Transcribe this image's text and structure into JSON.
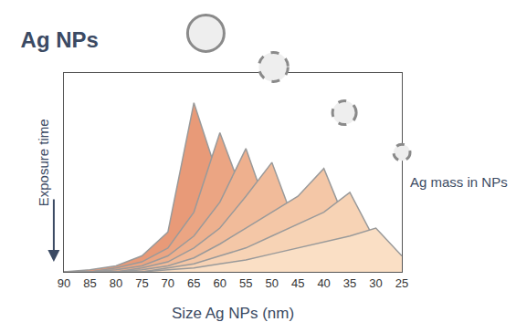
{
  "chart_data": {
    "type": "area",
    "title": "Ag NPs",
    "x_label": "Size Ag NPs (nm)",
    "annotations": [
      "Exposure time",
      "Ag mass in NPs"
    ],
    "x": [
      90,
      85,
      80,
      75,
      70,
      65,
      60,
      55,
      50,
      45,
      40,
      35,
      30,
      25
    ],
    "xlim": [
      90,
      25
    ],
    "xticks": [
      90,
      85,
      80,
      75,
      70,
      65,
      60,
      55,
      50,
      45,
      40,
      35,
      30,
      25
    ],
    "ylim": [
      0,
      100
    ],
    "yticks": [],
    "tick_labels": "x",
    "grid": false,
    "stacked": false,
    "series": [
      {
        "color": "#e89a78",
        "values": [
          0,
          1,
          3,
          8,
          20,
          85,
          45,
          18,
          6,
          2,
          1,
          0,
          0,
          0
        ]
      },
      {
        "color": "#eba583",
        "values": [
          0,
          0,
          2,
          5,
          12,
          30,
          70,
          35,
          12,
          4,
          1,
          0,
          0,
          0
        ]
      },
      {
        "color": "#eeb08e",
        "values": [
          0,
          0,
          1,
          3,
          8,
          18,
          35,
          62,
          25,
          8,
          2,
          0,
          0,
          0
        ]
      },
      {
        "color": "#f1bb9a",
        "values": [
          0,
          0,
          0,
          2,
          5,
          12,
          22,
          38,
          55,
          20,
          5,
          1,
          0,
          0
        ]
      },
      {
        "color": "#f4c7a7",
        "values": [
          0,
          0,
          0,
          1,
          3,
          7,
          14,
          22,
          30,
          38,
          52,
          20,
          4,
          0
        ]
      },
      {
        "color": "#f7d3b5",
        "values": [
          0,
          0,
          0,
          0,
          2,
          4,
          8,
          12,
          18,
          24,
          30,
          40,
          15,
          2
        ]
      },
      {
        "color": "#fadfc5",
        "values": [
          0,
          0,
          0,
          0,
          1,
          2,
          4,
          6,
          9,
          12,
          15,
          18,
          22,
          8
        ]
      }
    ]
  }
}
